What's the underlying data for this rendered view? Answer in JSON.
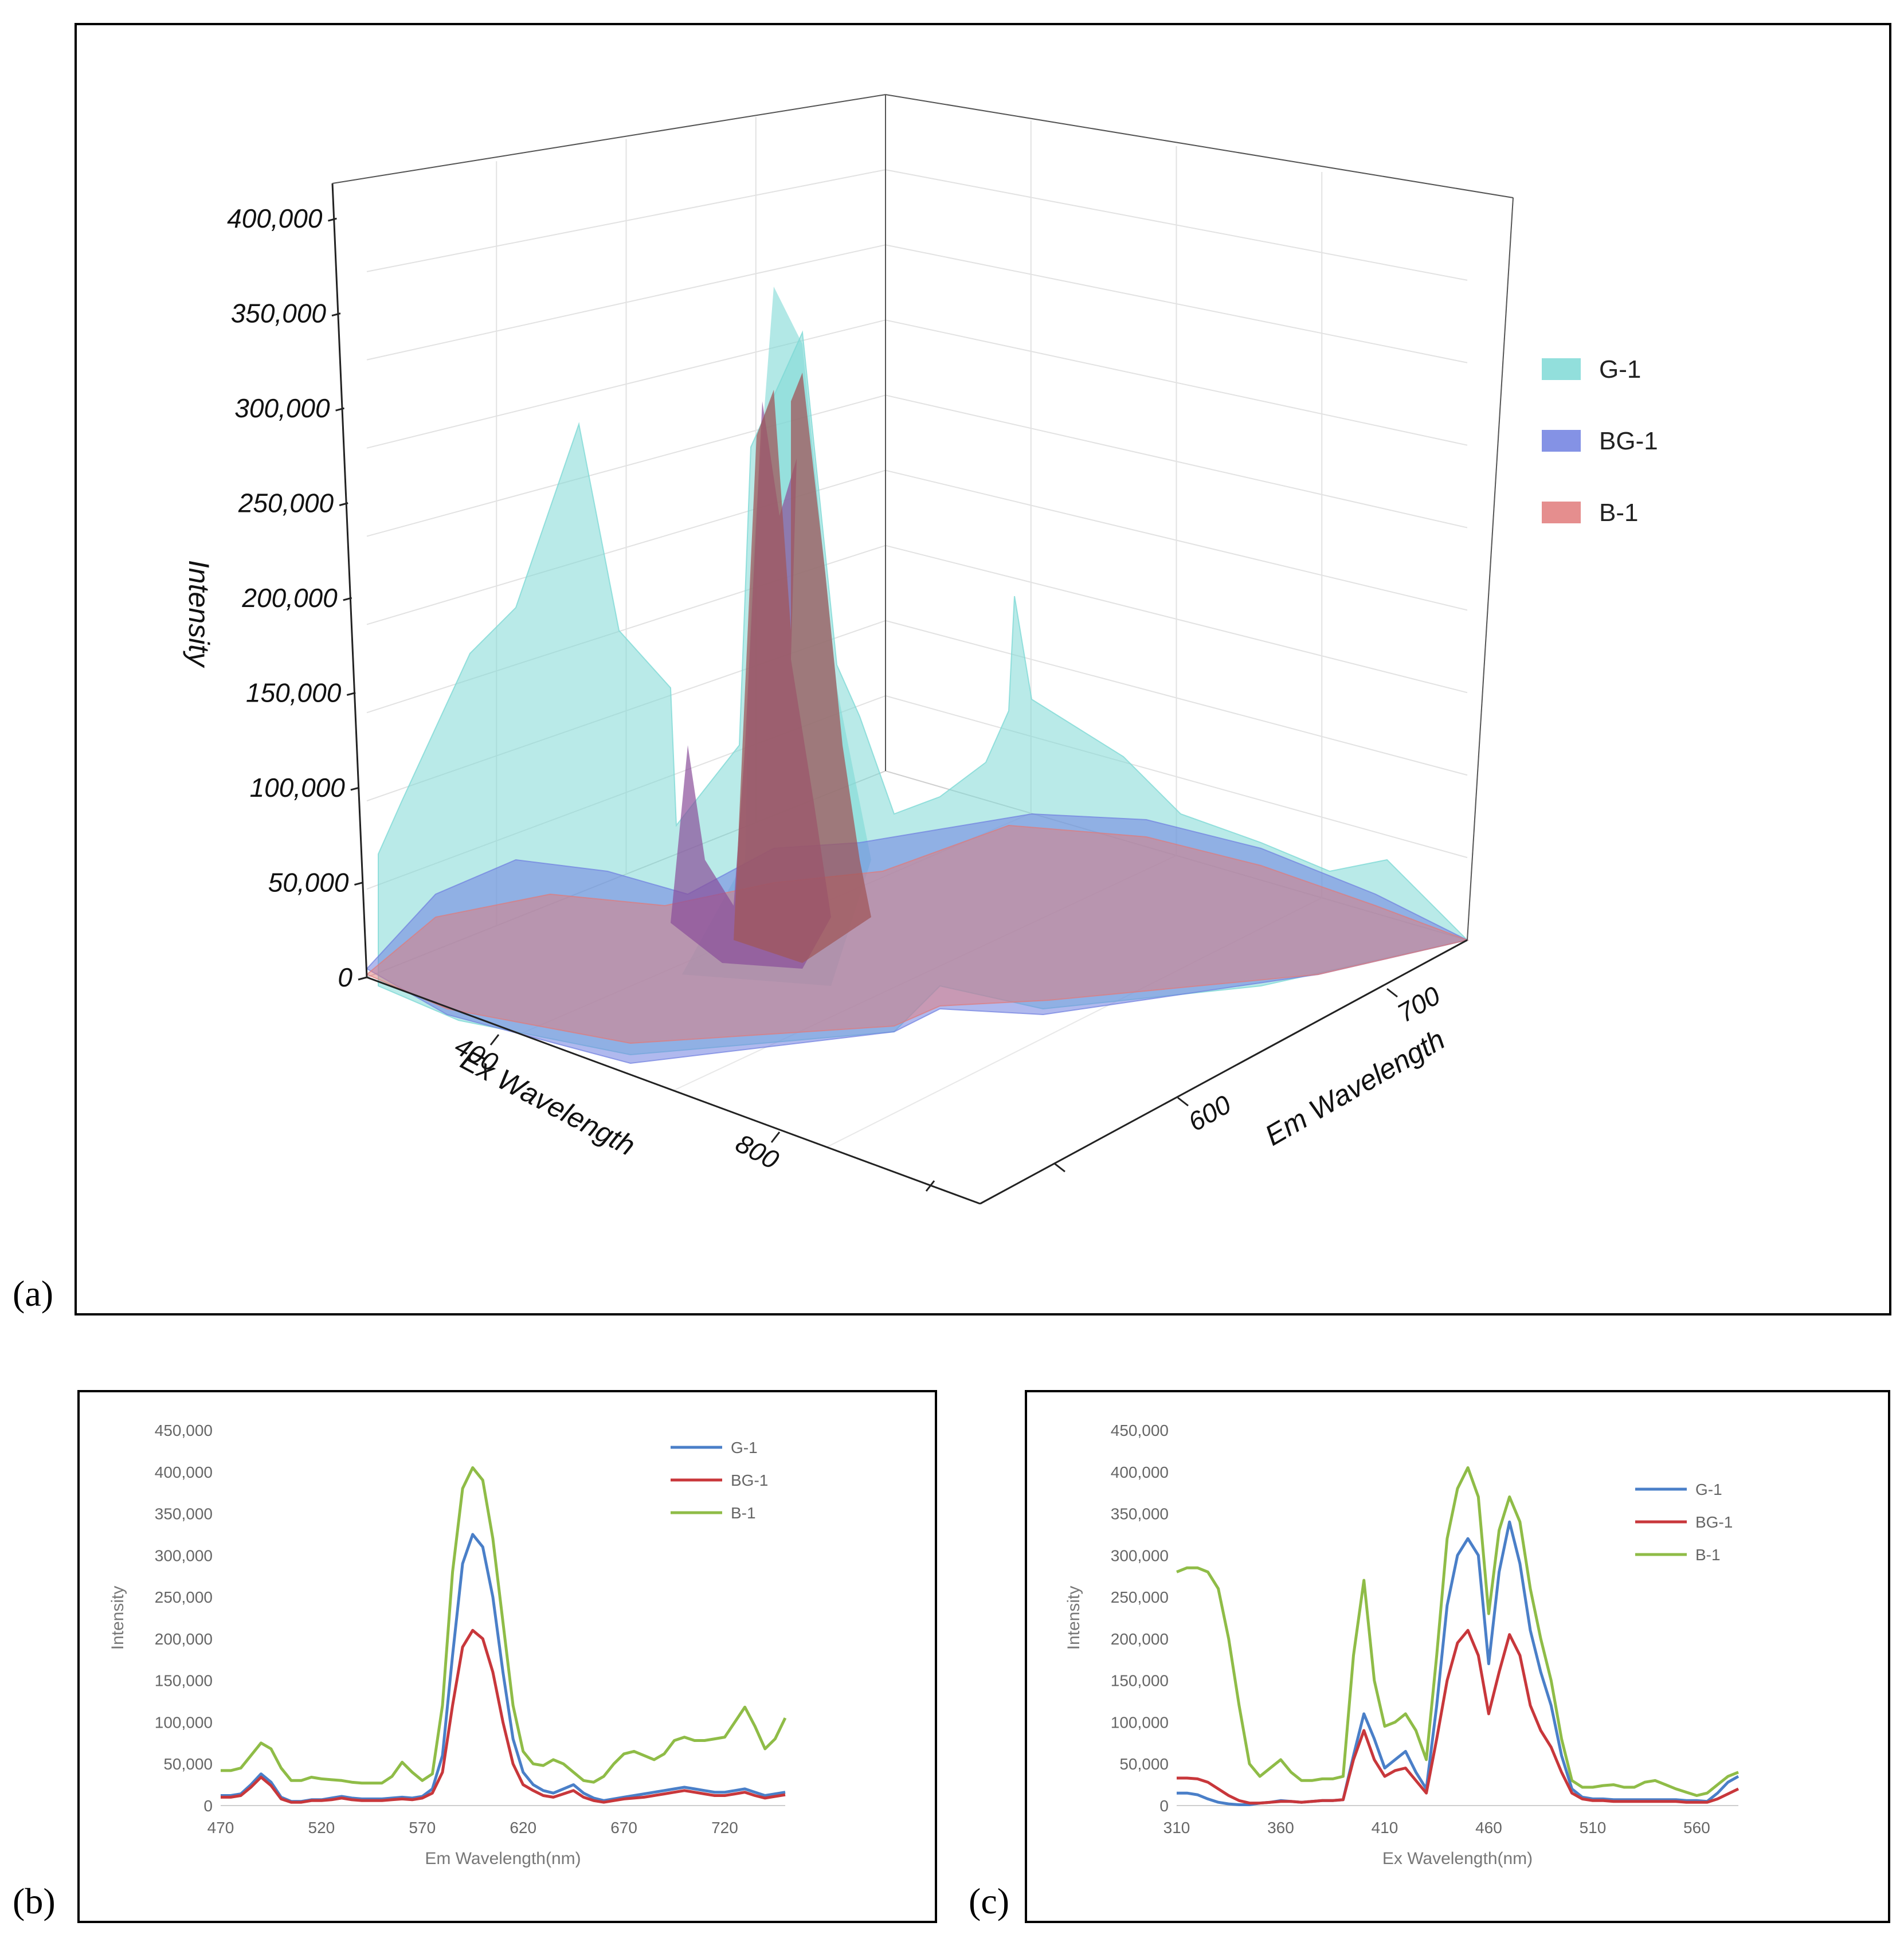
{
  "panels": {
    "a": {
      "label": "(a)"
    },
    "b": {
      "label": "(b)"
    },
    "c": {
      "label": "(c)"
    }
  },
  "colors": {
    "g1_surface": "#7fd9d6",
    "bg1_surface": "#6f7fe0",
    "b1_surface": "#e07a7a",
    "g1_line": "#4a7fc8",
    "bg1_line": "#c8373b",
    "b1_line": "#8fbc47"
  },
  "chart_data": [
    {
      "type": "surface3d",
      "title": "",
      "zlabel": "Intensity",
      "xlabel": "Ex Wavelength",
      "ylabel": "Em Wavelength",
      "z_ticks": [
        "0",
        "50,000",
        "100,000",
        "150,000",
        "200,000",
        "250,000",
        "300,000",
        "350,000",
        "400,000"
      ],
      "x_ticks": [
        "400",
        "800"
      ],
      "y_ticks": [
        "600",
        "700"
      ],
      "zlim": [
        0,
        420000
      ],
      "series": [
        {
          "name": "G-1",
          "peak": 400000
        },
        {
          "name": "BG-1",
          "peak": 320000
        },
        {
          "name": "B-1",
          "peak": 340000
        }
      ],
      "legend": [
        "G-1",
        "BG-1",
        "B-1"
      ],
      "legend_position": "right"
    },
    {
      "type": "line",
      "xlabel": "Em Wavelength(nm)",
      "ylabel": "Intensity",
      "x_ticks": [
        "470",
        "520",
        "570",
        "620",
        "670",
        "720"
      ],
      "y_ticks": [
        "0",
        "50,000",
        "100,000",
        "150,000",
        "200,000",
        "250,000",
        "300,000",
        "350,000",
        "400,000",
        "450,000"
      ],
      "xlim": [
        470,
        750
      ],
      "ylim": [
        0,
        450000
      ],
      "x": [
        470,
        475,
        480,
        485,
        490,
        495,
        500,
        505,
        510,
        515,
        520,
        525,
        530,
        535,
        540,
        545,
        550,
        555,
        560,
        565,
        570,
        575,
        580,
        585,
        590,
        595,
        600,
        605,
        610,
        615,
        620,
        625,
        630,
        635,
        640,
        645,
        650,
        655,
        660,
        665,
        670,
        675,
        680,
        685,
        690,
        695,
        700,
        705,
        710,
        715,
        720,
        725,
        730,
        735,
        740,
        745,
        750
      ],
      "series": [
        {
          "name": "G-1",
          "values": [
            12000,
            12000,
            14000,
            25000,
            38000,
            28000,
            10000,
            5000,
            5000,
            7000,
            7000,
            9000,
            11000,
            9000,
            8000,
            8000,
            8000,
            9000,
            10000,
            9000,
            11000,
            20000,
            60000,
            180000,
            290000,
            325000,
            310000,
            250000,
            160000,
            80000,
            40000,
            25000,
            18000,
            15000,
            20000,
            25000,
            15000,
            9000,
            6000,
            8000,
            10000,
            12000,
            14000,
            16000,
            18000,
            20000,
            22000,
            20000,
            18000,
            16000,
            16000,
            18000,
            20000,
            16000,
            12000,
            14000,
            16000
          ]
        },
        {
          "name": "BG-1",
          "values": [
            10000,
            10000,
            12000,
            22000,
            34000,
            24000,
            8000,
            4000,
            4000,
            6000,
            6000,
            7000,
            9000,
            7000,
            6000,
            6000,
            6000,
            7000,
            8000,
            7000,
            9000,
            15000,
            40000,
            120000,
            190000,
            210000,
            200000,
            160000,
            100000,
            50000,
            25000,
            18000,
            12000,
            10000,
            14000,
            18000,
            10000,
            6000,
            4000,
            6000,
            8000,
            9000,
            10000,
            12000,
            14000,
            16000,
            18000,
            16000,
            14000,
            12000,
            12000,
            14000,
            16000,
            12000,
            9000,
            11000,
            13000
          ]
        },
        {
          "name": "B-1",
          "values": [
            42000,
            42000,
            45000,
            60000,
            75000,
            68000,
            45000,
            30000,
            30000,
            34000,
            32000,
            31000,
            30000,
            28000,
            27000,
            27000,
            27000,
            35000,
            52000,
            40000,
            30000,
            38000,
            120000,
            280000,
            380000,
            405000,
            390000,
            320000,
            220000,
            120000,
            65000,
            50000,
            48000,
            55000,
            50000,
            40000,
            30000,
            28000,
            35000,
            50000,
            62000,
            65000,
            60000,
            55000,
            62000,
            78000,
            82000,
            78000,
            78000,
            80000,
            82000,
            100000,
            118000,
            95000,
            68000,
            80000,
            105000
          ]
        }
      ],
      "legend": [
        "G-1",
        "BG-1",
        "B-1"
      ],
      "legend_position": "top-right"
    },
    {
      "type": "line",
      "xlabel": "Ex Wavelength(nm)",
      "ylabel": "Intensity",
      "x_ticks": [
        "310",
        "360",
        "410",
        "460",
        "510",
        "560"
      ],
      "y_ticks": [
        "0",
        "50,000",
        "100,000",
        "150,000",
        "200,000",
        "250,000",
        "300,000",
        "350,000",
        "400,000",
        "450,000"
      ],
      "xlim": [
        310,
        580
      ],
      "ylim": [
        0,
        450000
      ],
      "x": [
        310,
        315,
        320,
        325,
        330,
        335,
        340,
        345,
        350,
        355,
        360,
        365,
        370,
        375,
        380,
        385,
        390,
        395,
        400,
        405,
        410,
        415,
        420,
        425,
        430,
        435,
        440,
        445,
        450,
        455,
        460,
        465,
        470,
        475,
        480,
        485,
        490,
        495,
        500,
        505,
        510,
        515,
        520,
        525,
        530,
        535,
        540,
        545,
        550,
        555,
        560,
        565,
        570,
        575,
        580
      ],
      "series": [
        {
          "name": "G-1",
          "values": [
            15000,
            15000,
            13000,
            8000,
            4000,
            2000,
            1000,
            1000,
            3000,
            4000,
            6000,
            5000,
            4000,
            5000,
            6000,
            6000,
            7000,
            60000,
            110000,
            80000,
            45000,
            55000,
            65000,
            40000,
            20000,
            120000,
            240000,
            300000,
            320000,
            300000,
            170000,
            280000,
            340000,
            290000,
            210000,
            160000,
            120000,
            60000,
            20000,
            10000,
            8000,
            8000,
            7000,
            7000,
            7000,
            7000,
            7000,
            7000,
            7000,
            6000,
            6000,
            5000,
            15000,
            28000,
            35000
          ]
        },
        {
          "name": "BG-1",
          "values": [
            33000,
            33000,
            32000,
            28000,
            20000,
            12000,
            6000,
            3000,
            3000,
            4000,
            5000,
            5000,
            4000,
            5000,
            6000,
            6000,
            7000,
            55000,
            90000,
            55000,
            35000,
            42000,
            45000,
            30000,
            15000,
            80000,
            150000,
            195000,
            210000,
            180000,
            110000,
            160000,
            205000,
            180000,
            120000,
            90000,
            70000,
            40000,
            15000,
            8000,
            6000,
            6000,
            5000,
            5000,
            5000,
            5000,
            5000,
            5000,
            5000,
            4000,
            4000,
            4000,
            8000,
            14000,
            20000
          ]
        },
        {
          "name": "B-1",
          "values": [
            280000,
            285000,
            285000,
            280000,
            260000,
            200000,
            120000,
            50000,
            35000,
            45000,
            55000,
            40000,
            30000,
            30000,
            32000,
            32000,
            35000,
            180000,
            270000,
            150000,
            95000,
            100000,
            110000,
            90000,
            55000,
            180000,
            320000,
            380000,
            405000,
            370000,
            230000,
            330000,
            370000,
            340000,
            260000,
            200000,
            150000,
            80000,
            30000,
            22000,
            22000,
            24000,
            25000,
            22000,
            22000,
            28000,
            30000,
            25000,
            20000,
            16000,
            12000,
            15000,
            25000,
            35000,
            40000
          ]
        }
      ],
      "legend": [
        "G-1",
        "BG-1",
        "B-1"
      ],
      "legend_position": "top-right"
    }
  ]
}
